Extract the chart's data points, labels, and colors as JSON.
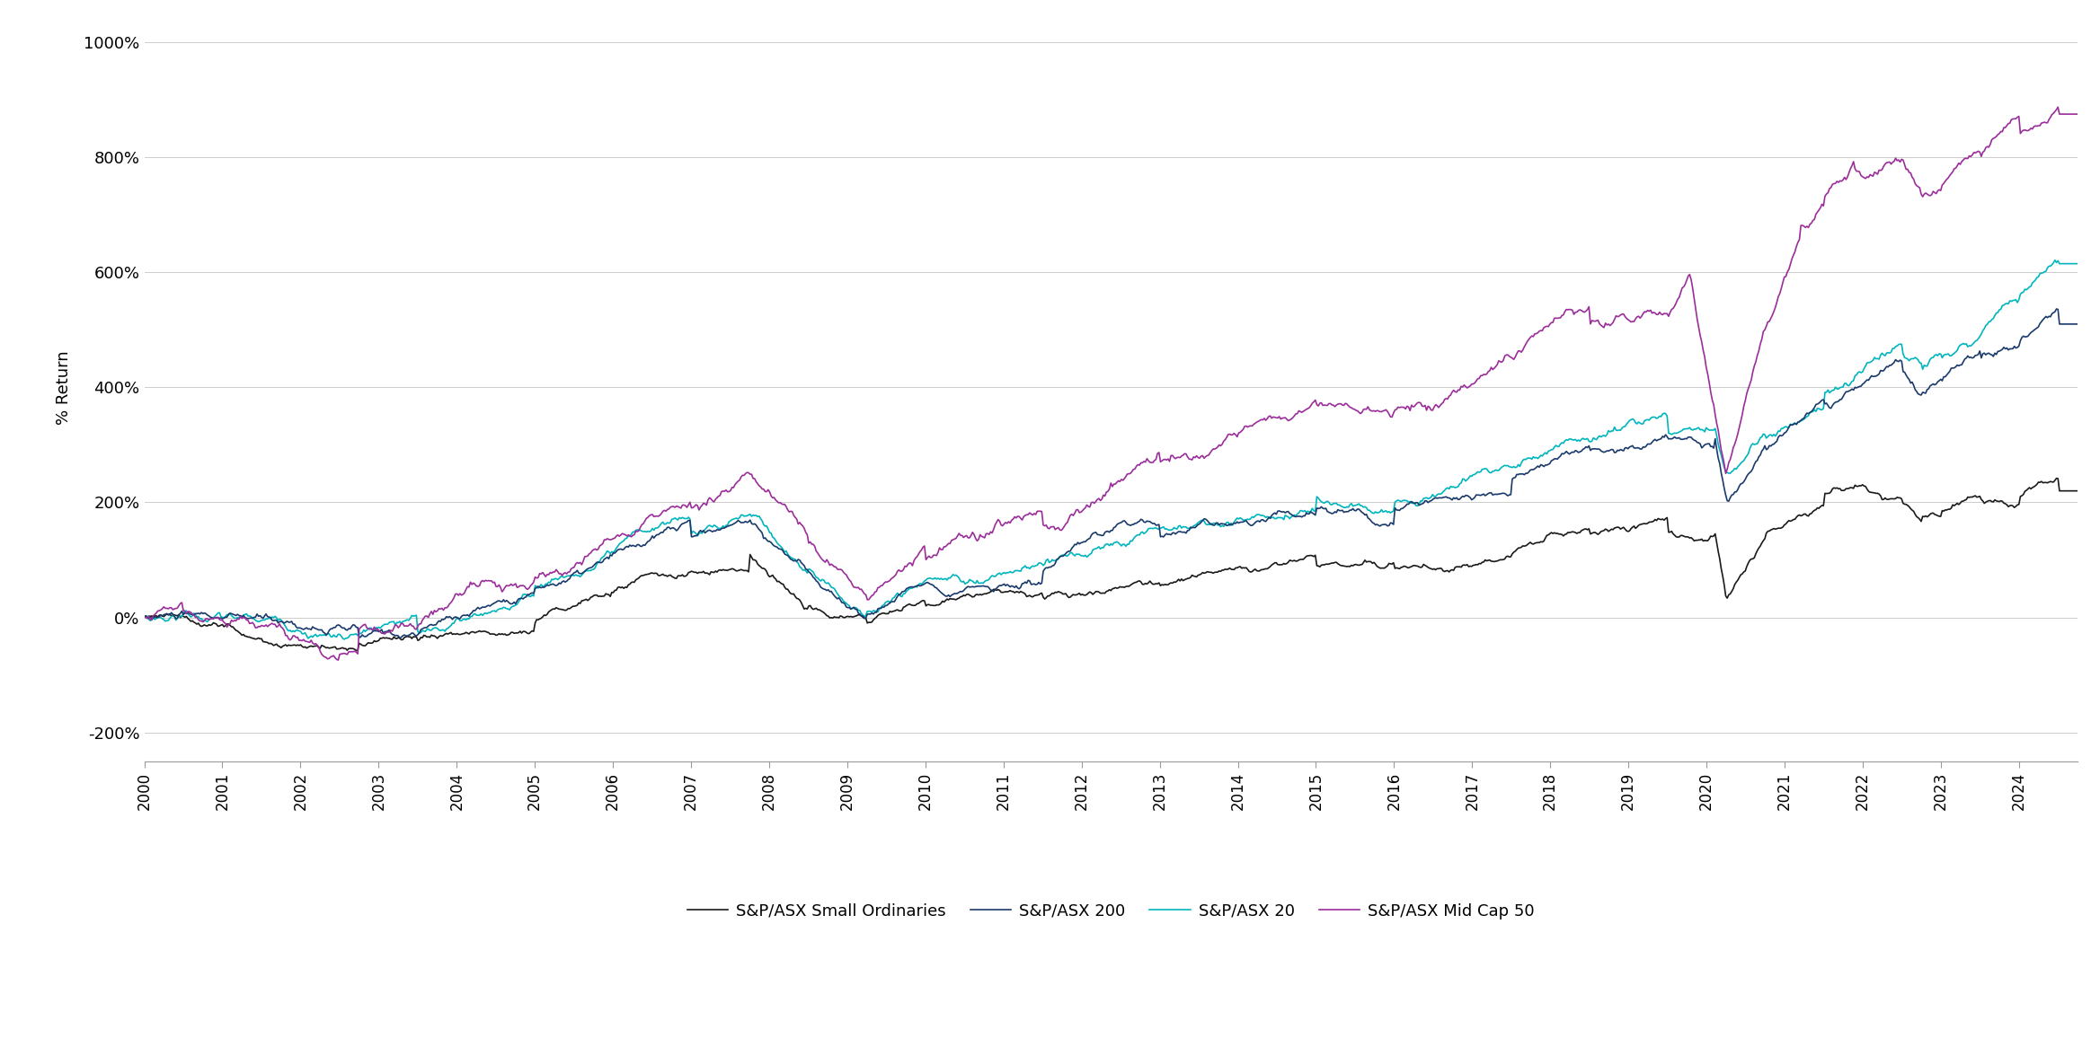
{
  "title": "",
  "ylabel": "% Return",
  "ylim": [
    -250,
    1050
  ],
  "yticks": [
    -200,
    0,
    200,
    400,
    600,
    800,
    1000
  ],
  "colors": {
    "asx200": "#1a3a6b",
    "asx20": "#00b5bd",
    "small_ord": "#1a1a1a",
    "mid50": "#9b2d9b"
  },
  "legend_labels": [
    "S&P/ASX 200",
    "S&P/ASX 20",
    "S&P/ASX Small Ordinaries",
    "S&P/ASX Mid Cap 50"
  ],
  "background_color": "#ffffff",
  "grid_color": "#cccccc"
}
